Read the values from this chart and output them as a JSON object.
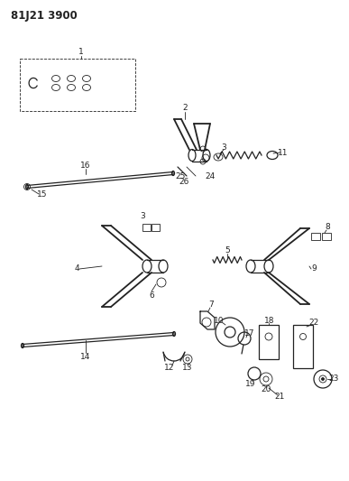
{
  "title": "81J21 3900",
  "bg_color": "#ffffff",
  "line_color": "#222222",
  "title_fontsize": 8.5,
  "label_fontsize": 6.5,
  "figsize": [
    3.87,
    5.33
  ],
  "dpi": 100
}
